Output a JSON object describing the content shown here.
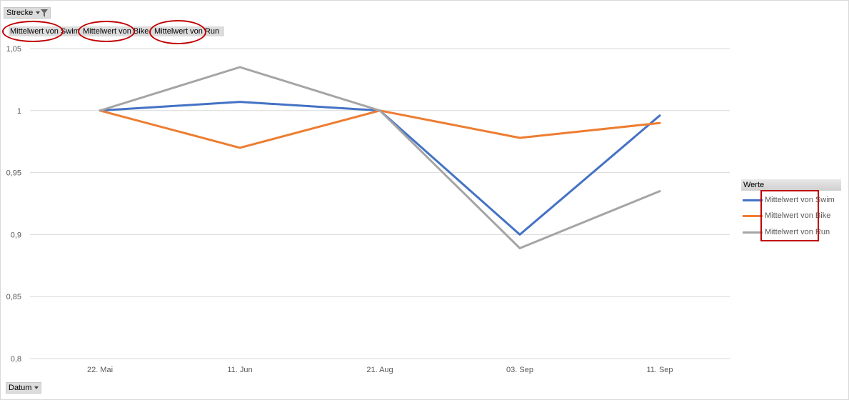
{
  "filter_field": {
    "label": "Strecke",
    "icon": "filter-icon"
  },
  "value_buttons": [
    "Mittelwert von Swim",
    "Mittelwert von Bike",
    "Mittelwert von Run"
  ],
  "axis_field": {
    "label": "Datum"
  },
  "legend": {
    "title": "Werte"
  },
  "colors": {
    "swim": "#4472c4",
    "bike": "#ed7d31",
    "run": "#a5a5a5",
    "highlight": "#c00000",
    "grid": "#d9d9d9"
  },
  "chart_data": {
    "type": "line",
    "categories": [
      "22. Mai",
      "11. Jun",
      "21. Aug",
      "03. Sep",
      "11. Sep"
    ],
    "series": [
      {
        "name": "Mittelwert von Swim",
        "color": "#4472c4",
        "values": [
          1.0,
          1.007,
          1.0,
          0.9,
          0.996
        ]
      },
      {
        "name": "Mittelwert von Bike",
        "color": "#ed7d31",
        "values": [
          1.0,
          0.97,
          1.0,
          0.978,
          0.99
        ]
      },
      {
        "name": "Mittelwert von Run",
        "color": "#a5a5a5",
        "values": [
          1.0,
          1.035,
          1.0,
          0.889,
          0.935
        ]
      }
    ],
    "yticks": [
      "0,8",
      "0,85",
      "0,9",
      "0,95",
      "1",
      "1,05"
    ],
    "ylim": [
      0.8,
      1.05
    ],
    "grid": true,
    "legend_position": "right"
  }
}
